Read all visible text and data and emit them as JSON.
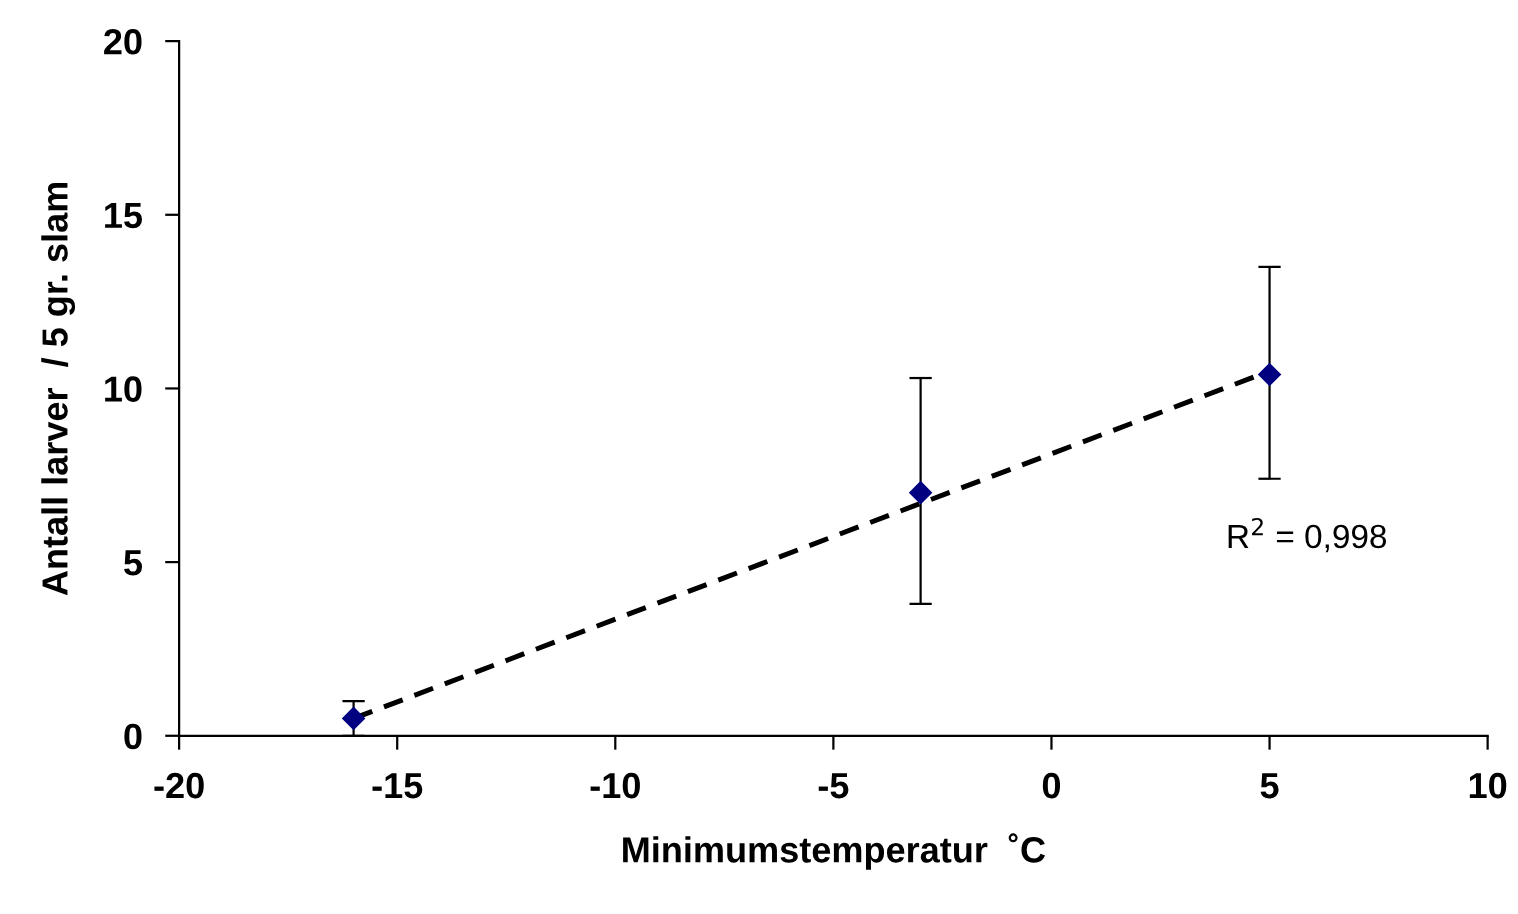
{
  "chart_data": {
    "type": "scatter",
    "xlabel": "Minimumstemperatur  ˚C",
    "ylabel": "Antall larver  / 5 gr. slam",
    "xlim": [
      -20,
      10
    ],
    "xticks": [
      -20,
      -15,
      -10,
      -5,
      0,
      5,
      10
    ],
    "ylim": [
      0,
      20
    ],
    "yticks": [
      0,
      5,
      10,
      15,
      20
    ],
    "grid": false,
    "annotations": [
      "R$^{2}$ = 0,998"
    ],
    "series": [
      {
        "color": "#000080",
        "marker": "diamond",
        "x": [
          -16,
          -3,
          5
        ],
        "values": [
          0.5,
          7.0,
          10.4
        ],
        "errors": [
          [
            0,
            1.0
          ],
          [
            3.8,
            10.3
          ],
          [
            7.4,
            13.5
          ]
        ]
      },
      {
        "type": "line",
        "color": "#000000",
        "marker": "none",
        "line_style": "dashed",
        "x": [
          -16,
          5
        ],
        "values": [
          0.5,
          10.5
        ]
      }
    ]
  }
}
